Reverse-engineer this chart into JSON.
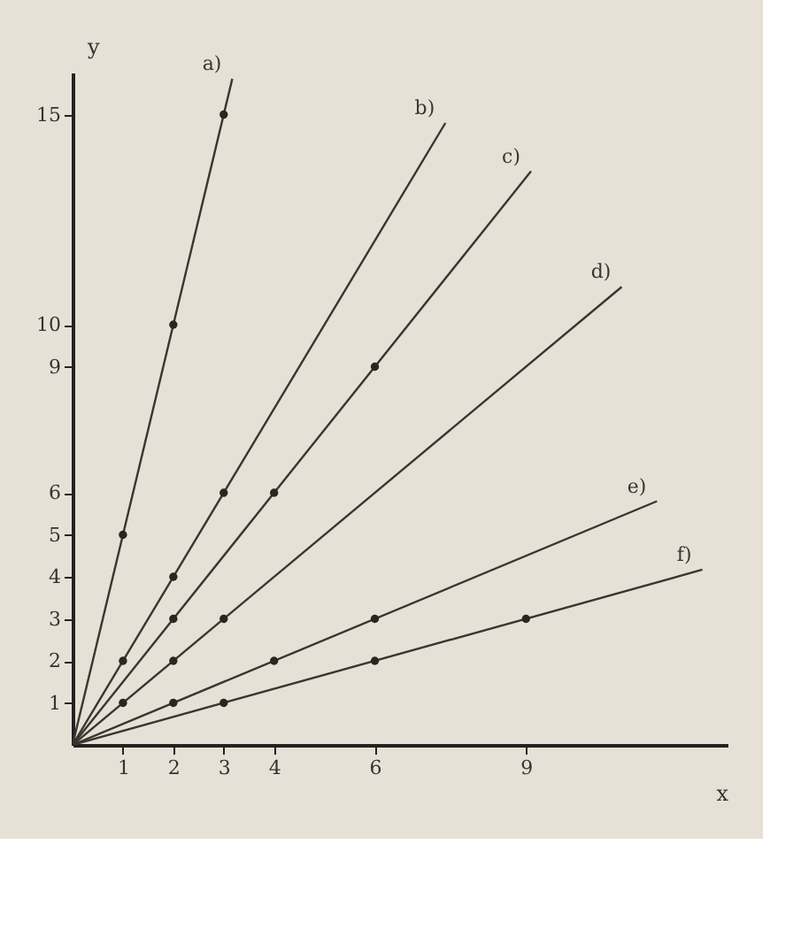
{
  "chart_data": {
    "type": "line",
    "xlabel": "x",
    "ylabel": "y",
    "xlim": [
      0,
      13
    ],
    "ylim": [
      0,
      16
    ],
    "xticks": [
      1,
      2,
      3,
      4,
      6,
      9
    ],
    "yticks": [
      1,
      2,
      3,
      4,
      5,
      6,
      9,
      10,
      15
    ],
    "grid": false,
    "line_style": "solid",
    "series": [
      {
        "name": "a)",
        "color": "#3a3530",
        "x": [
          0,
          3.17
        ],
        "values": [
          0,
          15.85
        ]
      },
      {
        "name": "b)",
        "color": "#3a3530",
        "x": [
          0,
          7.4
        ],
        "values": [
          0,
          14.8
        ]
      },
      {
        "name": "c)",
        "color": "#3a3530",
        "x": [
          0,
          9.1
        ],
        "values": [
          0,
          13.65
        ]
      },
      {
        "name": "d)",
        "color": "#3a3530",
        "x": [
          0,
          10.9
        ],
        "values": [
          0,
          10.9
        ]
      },
      {
        "name": "e)",
        "color": "#3a3530",
        "x": [
          0,
          11.6
        ],
        "values": [
          0,
          5.8
        ]
      },
      {
        "name": "f)",
        "color": "#3a3530",
        "x": [
          0,
          12.5
        ],
        "values": [
          0,
          4.17
        ]
      },
      {
        "type": "scatter",
        "marker": "circle",
        "color": "#2a2520",
        "x": [
          1,
          2,
          3,
          1,
          2,
          3,
          2,
          4,
          6,
          1,
          2,
          3,
          2,
          4,
          6,
          3,
          6,
          9
        ],
        "values": [
          5,
          10,
          15,
          2,
          4,
          6,
          3,
          6,
          9,
          1,
          2,
          3,
          1,
          2,
          3,
          1,
          2,
          3
        ]
      }
    ]
  }
}
